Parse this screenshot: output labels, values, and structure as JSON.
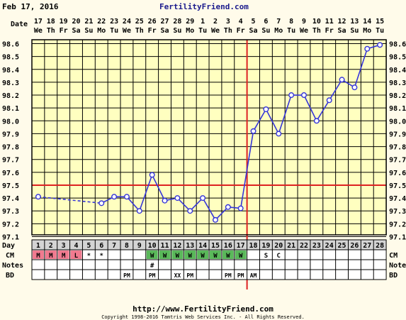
{
  "header": {
    "date": "Feb 17, 2016",
    "site": "FertilityFriend.com"
  },
  "footer": {
    "url": "http://www.FertilityFriend.com",
    "copyright": "Copyright 1998-2016 Tamtris Web Services Inc. - All Rights Reserved."
  },
  "row_labels": {
    "date": "Date",
    "day": "Day",
    "cm": "CM",
    "notes": "Notes",
    "bd": "BD"
  },
  "colors": {
    "line": "#3535d8",
    "coverline": "#dd2222",
    "grid": "#000000",
    "plot_bg": "#ffffc0",
    "day_row_bg": "#d4d4d4",
    "menstruation": "#f07a8f",
    "cm_fertile": "#5ab85a"
  },
  "chart_data": {
    "type": "line",
    "dates": [
      "17",
      "18",
      "19",
      "20",
      "21",
      "22",
      "23",
      "24",
      "25",
      "26",
      "27",
      "28",
      "29",
      "1",
      "2",
      "3",
      "4",
      "5",
      "6",
      "7",
      "8",
      "9",
      "10",
      "11",
      "12",
      "13",
      "14",
      "15"
    ],
    "weekdays": [
      "We",
      "Th",
      "Fr",
      "Sa",
      "Su",
      "Mo",
      "Tu",
      "We",
      "Th",
      "Fr",
      "Sa",
      "Su",
      "Mo",
      "Tu",
      "We",
      "Th",
      "Fr",
      "Sa",
      "Su",
      "Mo",
      "Tu",
      "We",
      "Th",
      "Fr",
      "Sa",
      "Su",
      "Mo",
      "Tu"
    ],
    "days": [
      1,
      2,
      3,
      4,
      5,
      6,
      7,
      8,
      9,
      10,
      11,
      12,
      13,
      14,
      15,
      16,
      17,
      18,
      19,
      20,
      21,
      22,
      23,
      24,
      25,
      26,
      27,
      28
    ],
    "temperatures": [
      97.41,
      null,
      null,
      null,
      null,
      97.36,
      97.41,
      97.41,
      97.3,
      97.58,
      97.38,
      97.4,
      97.3,
      97.4,
      97.23,
      97.33,
      97.32,
      97.92,
      98.09,
      97.9,
      98.2,
      98.2,
      98.0,
      98.16,
      98.32,
      98.26,
      98.56,
      98.59
    ],
    "ylim": [
      97.1,
      98.6
    ],
    "yticks": [
      "98.6",
      "98.5",
      "98.4",
      "98.3",
      "98.2",
      "98.1",
      "98.0",
      "97.9",
      "97.8",
      "97.7",
      "97.6",
      "97.5",
      "97.4",
      "97.3",
      "97.2",
      "97.1"
    ],
    "coverline": 97.5,
    "ovulation_line_after_day": 17,
    "cm": [
      "M",
      "M",
      "M",
      "L",
      "*",
      "*",
      "",
      "",
      "",
      "W",
      "W",
      "W",
      "W",
      "W",
      "W",
      "W",
      "W",
      "",
      "S",
      "C",
      "",
      "",
      "",
      "",
      "",
      "",
      "",
      ""
    ],
    "cm_type": [
      "menstruation",
      "menstruation",
      "menstruation",
      "menstruation",
      "",
      "",
      "",
      "",
      "",
      "fertile",
      "fertile",
      "fertile",
      "fertile",
      "fertile",
      "fertile",
      "fertile",
      "fertile",
      "",
      "",
      "",
      "",
      "",
      "",
      "",
      "",
      "",
      "",
      ""
    ],
    "notes": [
      "",
      "",
      "",
      "",
      "",
      "",
      "",
      "",
      "",
      "#",
      "",
      "",
      "",
      "",
      "",
      "",
      "",
      "",
      "",
      "",
      "",
      "",
      "",
      "",
      "",
      "",
      "",
      ""
    ],
    "bd": [
      "",
      "",
      "",
      "",
      "",
      "",
      "",
      "PM",
      "",
      "PM",
      "",
      "XX",
      "PM",
      "",
      "",
      "PM",
      "PM",
      "AM",
      "",
      "",
      "",
      "",
      "",
      "",
      "",
      "",
      "",
      ""
    ],
    "grid": true
  }
}
